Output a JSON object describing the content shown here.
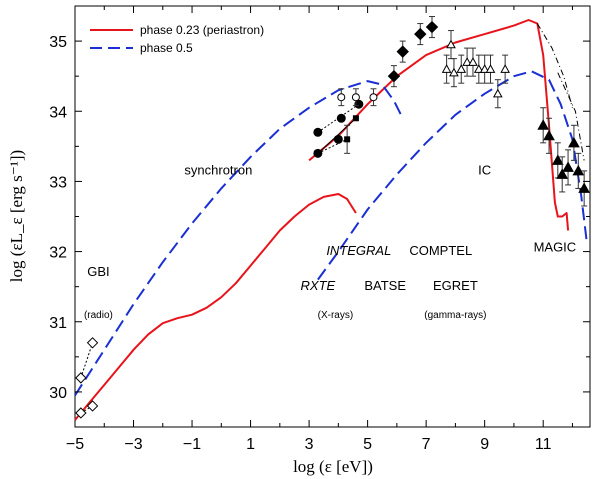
{
  "chart_data": {
    "type": "line",
    "xlabel": "log (ε [eV])",
    "ylabel": "log (εL_ε [erg s⁻¹])",
    "xlim": [
      -5,
      12.6
    ],
    "ylim": [
      29.5,
      35.5
    ],
    "x_ticks": [
      -5,
      -3,
      -1,
      1,
      3,
      5,
      7,
      9,
      11
    ],
    "x_tick_labels": [
      "−5",
      "−3",
      "−1",
      "1",
      "3",
      "5",
      "7",
      "9",
      "11"
    ],
    "y_ticks": [
      30,
      31,
      32,
      33,
      34,
      35
    ],
    "y_tick_labels": [
      "30",
      "31",
      "32",
      "33",
      "34",
      "35"
    ],
    "legend": {
      "position": "top-left",
      "entries": [
        {
          "label": "phase 0.23 (periastron)",
          "color": "#e8141b",
          "style": "solid"
        },
        {
          "label": "phase 0.5",
          "color": "#1a2fd4",
          "style": "dashed"
        }
      ]
    },
    "annotations": [
      {
        "text": "synchrotron",
        "x": -0.1,
        "y": 33.1,
        "size": "normal"
      },
      {
        "text": "IC",
        "x": 9.0,
        "y": 33.1,
        "size": "normal"
      },
      {
        "text": "GBI",
        "x": -4.2,
        "y": 31.65,
        "size": "normal"
      },
      {
        "text": "(radio)",
        "x": -4.2,
        "y": 31.05,
        "size": "small"
      },
      {
        "text": "INTEGRAL",
        "x": 4.7,
        "y": 31.95,
        "size": "normal",
        "italic": true
      },
      {
        "text": "COMPTEL",
        "x": 7.5,
        "y": 31.95,
        "size": "normal"
      },
      {
        "text": "MAGIC",
        "x": 11.4,
        "y": 32.0,
        "size": "normal"
      },
      {
        "text": "RXTE",
        "x": 3.3,
        "y": 31.45,
        "size": "normal",
        "italic": true
      },
      {
        "text": "BATSE",
        "x": 5.6,
        "y": 31.45,
        "size": "normal"
      },
      {
        "text": "EGRET",
        "x": 8.0,
        "y": 31.45,
        "size": "normal"
      },
      {
        "text": "(X-rays)",
        "x": 3.9,
        "y": 31.05,
        "size": "small"
      },
      {
        "text": "(gamma-rays)",
        "x": 8.0,
        "y": 31.05,
        "size": "small"
      }
    ],
    "series": [
      {
        "name": "phase 0.23 (periastron)",
        "color": "#e8141b",
        "style": "solid",
        "segments": [
          [
            [
              -5,
              29.6
            ],
            [
              -4.5,
              29.85
            ],
            [
              -4,
              30.1
            ],
            [
              -3.5,
              30.35
            ],
            [
              -3,
              30.6
            ],
            [
              -2.5,
              30.82
            ],
            [
              -2,
              30.98
            ],
            [
              -1.5,
              31.05
            ],
            [
              -1,
              31.1
            ],
            [
              -0.5,
              31.2
            ],
            [
              0,
              31.35
            ],
            [
              0.5,
              31.55
            ],
            [
              1,
              31.8
            ],
            [
              1.5,
              32.05
            ],
            [
              2,
              32.3
            ],
            [
              2.5,
              32.5
            ],
            [
              3,
              32.67
            ],
            [
              3.5,
              32.78
            ],
            [
              4,
              32.82
            ],
            [
              4.3,
              32.75
            ],
            [
              4.6,
              32.55
            ]
          ],
          [
            [
              3.0,
              33.3
            ],
            [
              4,
              33.65
            ],
            [
              5,
              34.1
            ],
            [
              6,
              34.5
            ],
            [
              7,
              34.8
            ],
            [
              8,
              34.98
            ],
            [
              9,
              35.1
            ],
            [
              10,
              35.22
            ],
            [
              10.5,
              35.3
            ],
            [
              10.8,
              35.25
            ],
            [
              11,
              34.8
            ],
            [
              11.2,
              33.8
            ],
            [
              11.4,
              32.7
            ],
            [
              11.5,
              32.5
            ],
            [
              11.65,
              32.5
            ],
            [
              11.8,
              32.55
            ],
            [
              11.85,
              32.3
            ]
          ]
        ]
      },
      {
        "name": "phase 0.5",
        "color": "#1a2fd4",
        "style": "dashed",
        "segments": [
          [
            [
              -5,
              29.95
            ],
            [
              -4,
              30.6
            ],
            [
              -3,
              31.25
            ],
            [
              -2,
              31.85
            ],
            [
              -1,
              32.4
            ],
            [
              0,
              32.9
            ],
            [
              1,
              33.35
            ],
            [
              2,
              33.75
            ],
            [
              3,
              34.05
            ],
            [
              4,
              34.3
            ],
            [
              5,
              34.43
            ],
            [
              5.5,
              34.38
            ],
            [
              5.9,
              34.15
            ],
            [
              6.2,
              33.9
            ]
          ],
          [
            [
              3.3,
              31.6
            ],
            [
              4,
              32.0
            ],
            [
              5,
              32.6
            ],
            [
              6,
              33.1
            ],
            [
              7,
              33.55
            ],
            [
              8,
              33.95
            ],
            [
              9,
              34.25
            ],
            [
              10,
              34.5
            ],
            [
              10.6,
              34.57
            ],
            [
              11.2,
              34.45
            ],
            [
              11.6,
              34.1
            ],
            [
              12.0,
              33.6
            ],
            [
              12.3,
              32.8
            ],
            [
              12.5,
              32.1
            ]
          ]
        ]
      },
      {
        "name": "",
        "color": "#000000",
        "style": "dash-dot-thin",
        "segments": [
          [
            [
              10.8,
              35.25
            ],
            [
              11.3,
              34.9
            ],
            [
              11.7,
              34.5
            ],
            [
              12.0,
              34.05
            ]
          ],
          [
            [
              11.5,
              34.55
            ],
            [
              12.1,
              34.0
            ],
            [
              12.4,
              33.3
            ]
          ]
        ]
      }
    ],
    "observations": {
      "radio_diamonds_open": [
        [
          -4.8,
          29.7
        ],
        [
          -4.4,
          29.8
        ],
        [
          -4.8,
          30.2
        ],
        [
          -4.4,
          30.7
        ]
      ],
      "xray_circles_filled": [
        [
          3.3,
          33.4
        ],
        [
          3.3,
          33.7
        ],
        [
          4.0,
          33.6
        ],
        [
          4.1,
          33.9
        ],
        [
          4.7,
          34.1
        ]
      ],
      "xray_circles_open": [
        [
          4.1,
          34.2
        ],
        [
          4.6,
          34.2
        ],
        [
          5.2,
          34.2
        ]
      ],
      "xray_squares_filled": [
        [
          4.3,
          33.6
        ],
        [
          4.6,
          33.9
        ]
      ],
      "gamma_diamonds_filled": [
        [
          5.9,
          34.5
        ],
        [
          6.2,
          34.85
        ],
        [
          6.8,
          35.1
        ],
        [
          7.2,
          35.2
        ]
      ],
      "egret_triangles_open": [
        [
          7.85,
          34.95
        ],
        [
          7.7,
          34.6
        ],
        [
          7.95,
          34.55
        ],
        [
          8.2,
          34.6
        ],
        [
          8.4,
          34.7
        ],
        [
          8.6,
          34.7
        ],
        [
          8.8,
          34.6
        ],
        [
          9.0,
          34.6
        ],
        [
          9.2,
          34.6
        ],
        [
          9.45,
          34.25
        ],
        [
          9.7,
          34.6
        ]
      ],
      "magic_triangles_filled": [
        [
          11.0,
          33.8
        ],
        [
          11.2,
          33.65
        ],
        [
          11.5,
          33.3
        ],
        [
          11.65,
          33.1
        ],
        [
          11.85,
          33.2
        ],
        [
          12.05,
          33.55
        ],
        [
          12.2,
          33.15
        ],
        [
          12.4,
          32.9
        ]
      ]
    }
  }
}
